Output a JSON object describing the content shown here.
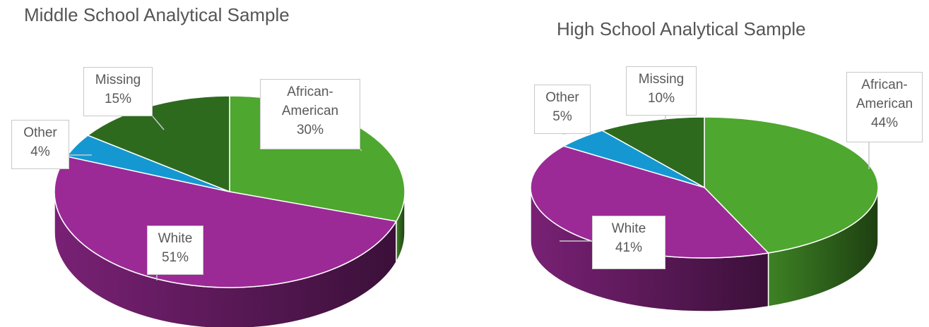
{
  "chart_data": [
    {
      "type": "pie",
      "title": "Middle School Analytical Sample",
      "slices": [
        {
          "label": "African-American",
          "label_lines": [
            "African-",
            "American"
          ],
          "value": 30,
          "value_label": "30%",
          "color": "#4ea72e"
        },
        {
          "label": "White",
          "label_lines": [
            "White"
          ],
          "value": 51,
          "value_label": "51%",
          "color": "#9b2a96"
        },
        {
          "label": "Other",
          "label_lines": [
            "Other"
          ],
          "value": 4,
          "value_label": "4%",
          "color": "#1598d2"
        },
        {
          "label": "Missing",
          "label_lines": [
            "Missing"
          ],
          "value": 15,
          "value_label": "15%",
          "color": "#2d6a1e"
        }
      ]
    },
    {
      "type": "pie",
      "title": "High School Analytical Sample",
      "slices": [
        {
          "label": "African-American",
          "label_lines": [
            "African-",
            "American"
          ],
          "value": 44,
          "value_label": "44%",
          "color": "#4ea72e"
        },
        {
          "label": "White",
          "label_lines": [
            "White"
          ],
          "value": 41,
          "value_label": "41%",
          "color": "#9b2a96"
        },
        {
          "label": "Other",
          "label_lines": [
            "Other"
          ],
          "value": 5,
          "value_label": "5%",
          "color": "#1598d2"
        },
        {
          "label": "Missing",
          "label_lines": [
            "Missing"
          ],
          "value": 10,
          "value_label": "10%",
          "color": "#2d6a1e"
        }
      ]
    }
  ]
}
